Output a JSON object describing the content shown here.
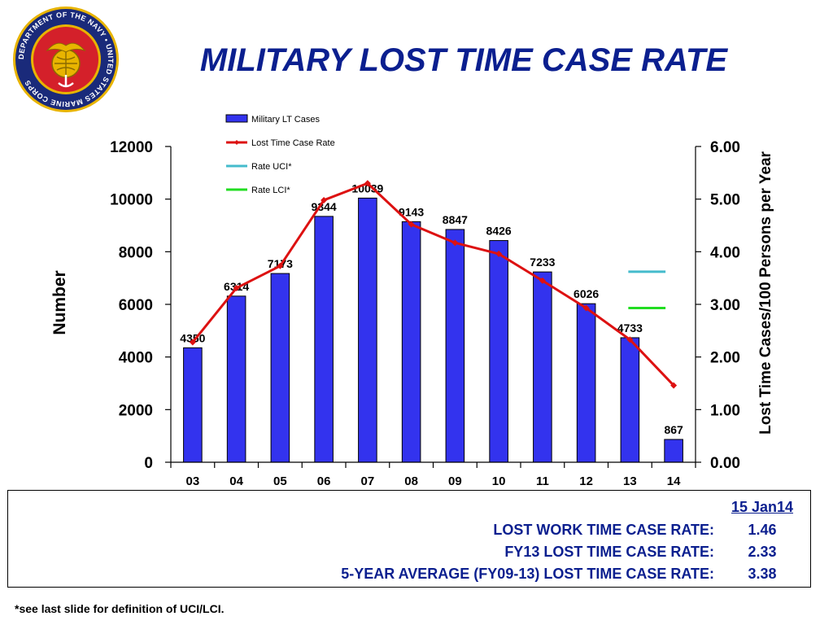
{
  "title": "MILITARY LOST TIME CASE RATE",
  "seal": {
    "icon": "department-of-the-navy-usmc-seal-icon",
    "text": "DEPARTMENT OF THE NAVY • UNITED STATES MARINE CORPS",
    "colors": {
      "ring": "#1a2a7a",
      "red": "#d4202a",
      "gold": "#e8b400"
    }
  },
  "chart_data": {
    "type": "bar",
    "categories": [
      "03",
      "04",
      "05",
      "06",
      "07",
      "08",
      "09",
      "10",
      "11",
      "12",
      "13",
      "14"
    ],
    "series": [
      {
        "name": "Military LT Cases",
        "type": "bar",
        "axis": "left",
        "color": "#3333ee",
        "values": [
          4350,
          6314,
          7173,
          9344,
          10039,
          9143,
          8847,
          8426,
          7233,
          6026,
          4733,
          867
        ]
      },
      {
        "name": "Lost Time Case Rate",
        "type": "line",
        "axis": "right",
        "color": "#dd1111",
        "values": [
          2.28,
          3.31,
          3.73,
          4.98,
          5.3,
          4.52,
          4.17,
          3.96,
          3.45,
          2.93,
          2.33,
          1.46
        ]
      },
      {
        "name": "Rate UCI*",
        "type": "line",
        "axis": "right",
        "color": "#44bbcc",
        "x_range": [
          "13",
          "14"
        ],
        "value": 3.62
      },
      {
        "name": "Rate LCI*",
        "type": "line",
        "axis": "right",
        "color": "#22dd22",
        "x_range": [
          "13",
          "14"
        ],
        "value": 2.93
      }
    ],
    "data_labels": [
      "4350",
      "6314",
      "7173",
      "9344",
      "10039",
      "9143",
      "8847",
      "8426",
      "7233",
      "6026",
      "4733",
      "867"
    ],
    "ylabel": "Number",
    "y2label": "Lost Time Cases/100 Persons per Year",
    "ylim": [
      0,
      12000
    ],
    "y2lim": [
      0,
      6
    ],
    "yticks": [
      "0",
      "2000",
      "4000",
      "6000",
      "8000",
      "10000",
      "12000"
    ],
    "y2ticks": [
      "0.00",
      "1.00",
      "2.00",
      "3.00",
      "4.00",
      "5.00",
      "6.00"
    ],
    "grid": false,
    "legend_position": "top-left"
  },
  "summary": {
    "date": "15 Jan14",
    "rows": [
      {
        "label": "LOST WORK TIME CASE RATE:",
        "value": "1.46"
      },
      {
        "label": "FY13 LOST TIME CASE RATE:",
        "value": "2.33"
      },
      {
        "label": "5-YEAR AVERAGE (FY09-13) LOST TIME CASE RATE:",
        "value": "3.38"
      }
    ]
  },
  "footnote": "*see last slide for definition of UCI/LCI."
}
